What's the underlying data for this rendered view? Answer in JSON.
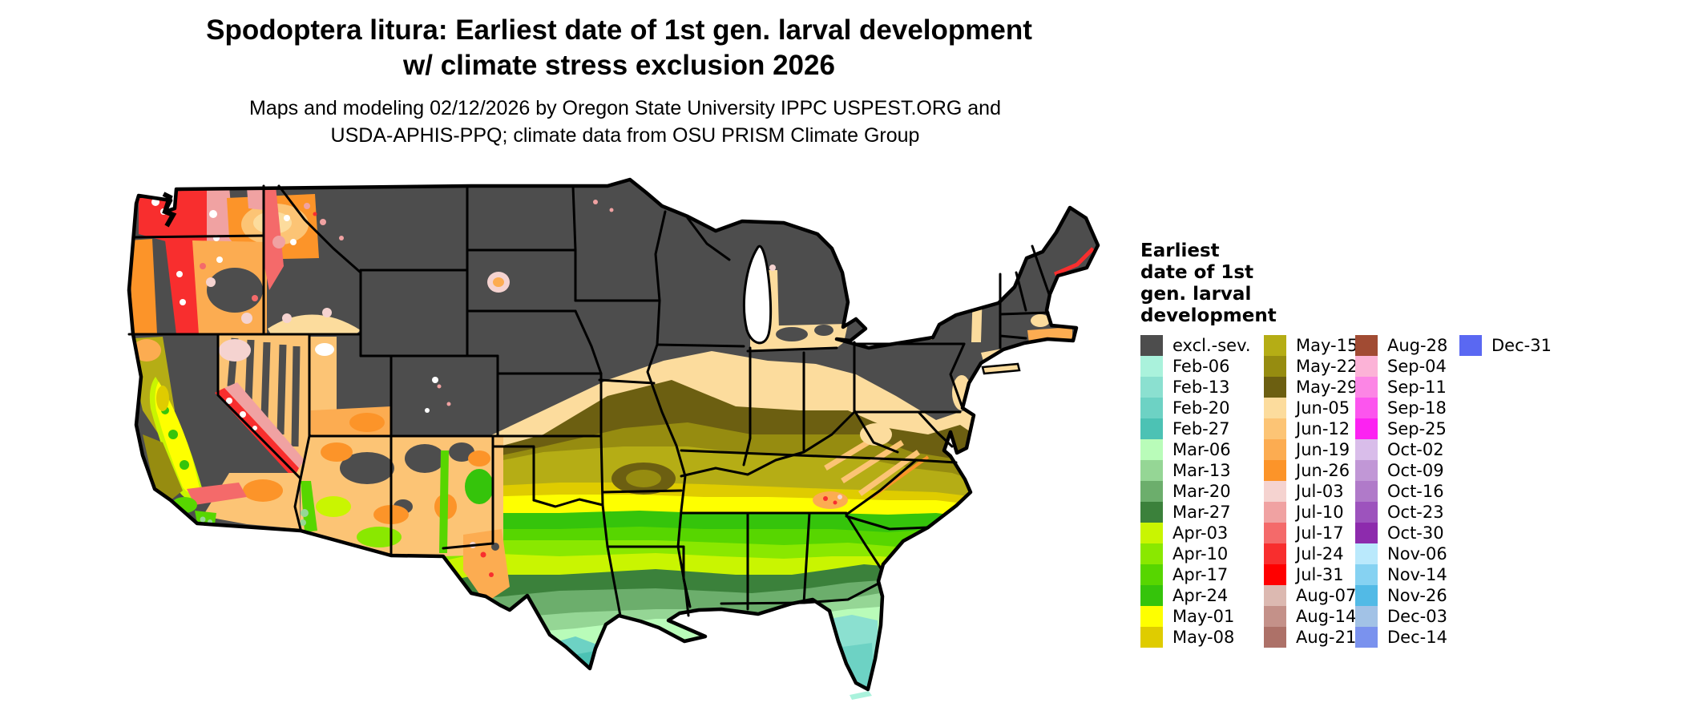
{
  "title": {
    "line1": "Spodoptera litura: Earliest date of 1st gen. larval development",
    "line2": "w/ climate stress exclusion 2026"
  },
  "subtitle": {
    "line1": "Maps and modeling 02/12/2026 by Oregon State University IPPC USPEST.ORG and",
    "line2": "USDA-APHIS-PPQ; climate data from OSU PRISM Climate Group"
  },
  "legend": {
    "title_lines": [
      "Earliest",
      "date of 1st",
      "gen. larval",
      "development"
    ],
    "columns": [
      {
        "entries": [
          {
            "label": "excl.-sev.",
            "color": "#4d4d4d"
          },
          {
            "label": "Feb-06",
            "color": "#aaf2dc"
          },
          {
            "label": "Feb-13",
            "color": "#8be0d0"
          },
          {
            "label": "Feb-20",
            "color": "#6dd2c4"
          },
          {
            "label": "Feb-27",
            "color": "#4cc2b4"
          },
          {
            "label": "Mar-06",
            "color": "#b9fcb9"
          },
          {
            "label": "Mar-13",
            "color": "#95d695"
          },
          {
            "label": "Mar-20",
            "color": "#6cae6c"
          },
          {
            "label": "Mar-27",
            "color": "#3b813b"
          },
          {
            "label": "Apr-03",
            "color": "#c9f501"
          },
          {
            "label": "Apr-10",
            "color": "#8ae800"
          },
          {
            "label": "Apr-17",
            "color": "#57d600"
          },
          {
            "label": "Apr-24",
            "color": "#35c40b"
          },
          {
            "label": "May-01",
            "color": "#feff00"
          },
          {
            "label": "May-08",
            "color": "#dfcc00"
          }
        ]
      },
      {
        "entries": [
          {
            "label": "May-15",
            "color": "#b5ad15"
          },
          {
            "label": "May-22",
            "color": "#968c10"
          },
          {
            "label": "May-29",
            "color": "#6c5f11"
          },
          {
            "label": "Jun-05",
            "color": "#fcdc9d"
          },
          {
            "label": "Jun-12",
            "color": "#fcc475"
          },
          {
            "label": "Jun-19",
            "color": "#fcac51"
          },
          {
            "label": "Jun-26",
            "color": "#fc9429"
          },
          {
            "label": "Jul-03",
            "color": "#f5d3d0"
          },
          {
            "label": "Jul-10",
            "color": "#f0a2a2"
          },
          {
            "label": "Jul-17",
            "color": "#f46a6a"
          },
          {
            "label": "Jul-24",
            "color": "#f82e2e"
          },
          {
            "label": "Jul-31",
            "color": "#ff0000"
          },
          {
            "label": "Aug-07",
            "color": "#dcb9b1"
          },
          {
            "label": "Aug-14",
            "color": "#c49189"
          },
          {
            "label": "Aug-21",
            "color": "#ad7168"
          }
        ]
      },
      {
        "entries": [
          {
            "label": "Aug-28",
            "color": "#a14b33"
          },
          {
            "label": "Sep-04",
            "color": "#fcb3d7"
          },
          {
            "label": "Sep-11",
            "color": "#fc86e5"
          },
          {
            "label": "Sep-18",
            "color": "#fc55ee"
          },
          {
            "label": "Sep-25",
            "color": "#fc22f2"
          },
          {
            "label": "Oct-02",
            "color": "#d9bdea"
          },
          {
            "label": "Oct-09",
            "color": "#c197d6"
          },
          {
            "label": "Oct-16",
            "color": "#b07ac9"
          },
          {
            "label": "Oct-23",
            "color": "#9d53bd"
          },
          {
            "label": "Oct-30",
            "color": "#8d2bad"
          },
          {
            "label": "Nov-06",
            "color": "#bae9fc"
          },
          {
            "label": "Nov-14",
            "color": "#86d2f2"
          },
          {
            "label": "Nov-26",
            "color": "#52bae6"
          },
          {
            "label": "Dec-03",
            "color": "#a2c2e6"
          },
          {
            "label": "Dec-14",
            "color": "#7a92ee"
          }
        ]
      },
      {
        "entries": [
          {
            "label": "Dec-31",
            "color": "#5a68f2"
          }
        ]
      }
    ]
  },
  "map": {
    "background": "#ffffff",
    "border_color": "#000000",
    "excluded_color": "#4d4d4d"
  }
}
